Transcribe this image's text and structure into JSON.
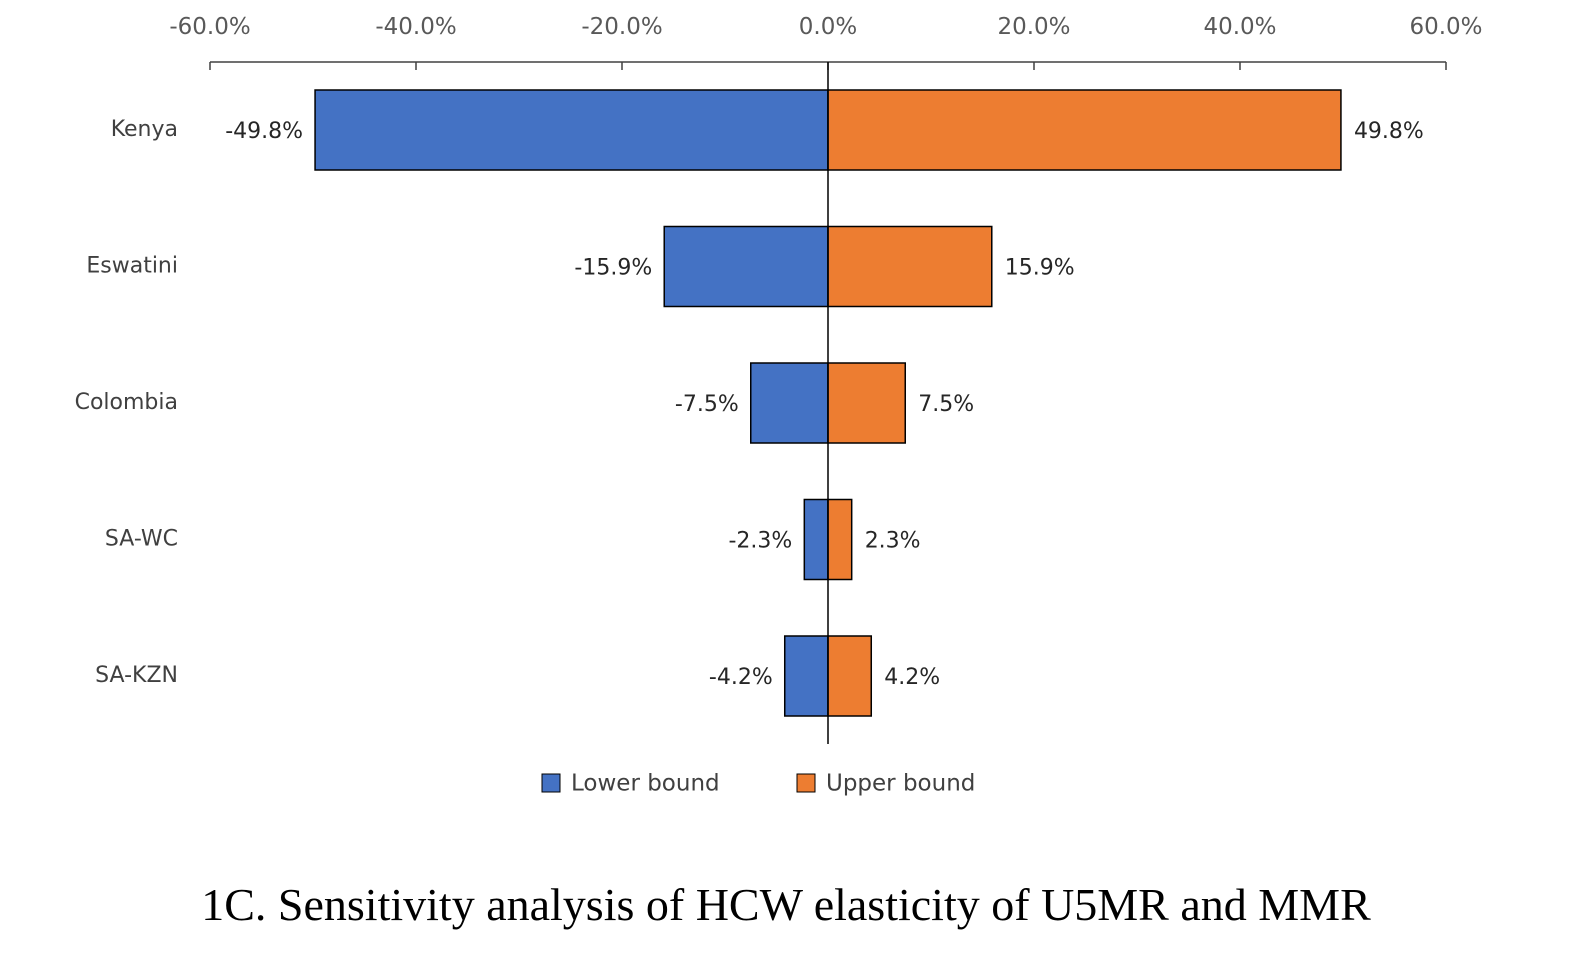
{
  "chart_data": {
    "type": "bar",
    "orientation": "horizontal",
    "layout": "tornado",
    "categories": [
      "Kenya",
      "Eswatini",
      "Colombia",
      "SA-WC",
      "SA-KZN"
    ],
    "series": [
      {
        "name": "Lower bound",
        "color": "#4472C4",
        "values": [
          -49.8,
          -15.9,
          -7.5,
          -2.3,
          -4.2
        ],
        "labels": [
          "-49.8%",
          "-15.9%",
          "-7.5%",
          "-2.3%",
          "-4.2%"
        ]
      },
      {
        "name": "Upper bound",
        "color": "#ED7D31",
        "values": [
          49.8,
          15.9,
          7.5,
          2.3,
          4.2
        ],
        "labels": [
          "49.8%",
          "15.9%",
          "7.5%",
          "2.3%",
          "4.2%"
        ]
      }
    ],
    "xlim": [
      -60,
      60
    ],
    "x_ticks": [
      -60,
      -40,
      -20,
      0,
      20,
      40,
      60
    ],
    "x_tick_labels": [
      "-60.0%",
      "-40.0%",
      "-20.0%",
      "0.0%",
      "20.0%",
      "40.0%",
      "60.0%"
    ],
    "x_axis_position": "top",
    "grid": false,
    "legend_position": "bottom-center"
  },
  "caption": "1C. Sensitivity analysis of HCW elasticity of U5MR and MMR"
}
